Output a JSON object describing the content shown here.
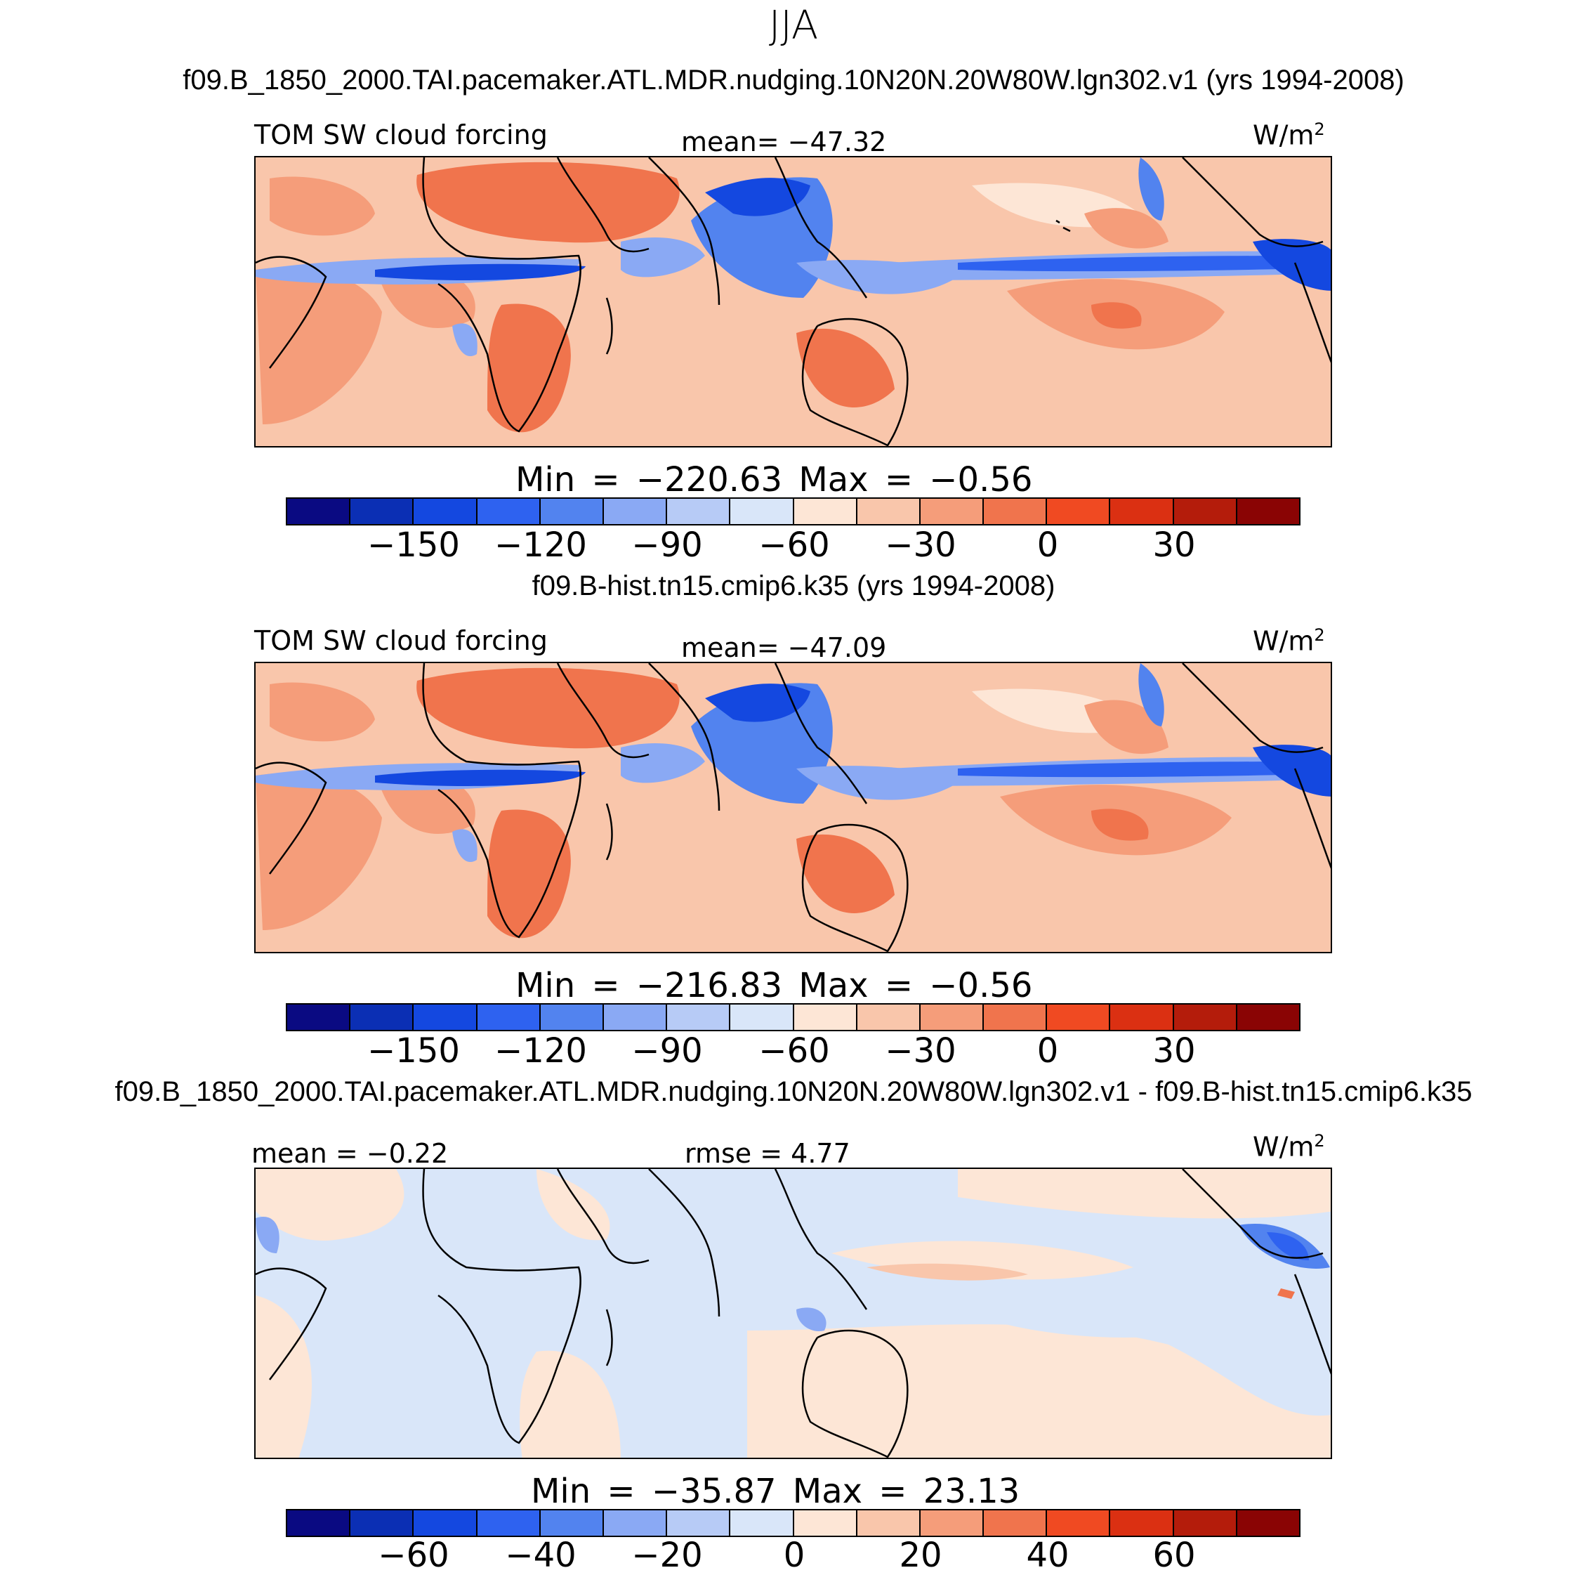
{
  "season": "JJA",
  "colors": [
    "#0a0a82",
    "#0b2fb4",
    "#1448e0",
    "#2e62f0",
    "#5283ef",
    "#8aa9f4",
    "#b7cbf6",
    "#d9e6f9",
    "#fde6d6",
    "#f9c6ab",
    "#f59d7a",
    "#f0744d",
    "#f04a22",
    "#db3012",
    "#b41c0b",
    "#8a0404"
  ],
  "panels": [
    {
      "title": "f09.B_1850_2000.TAI.pacemaker.ATL.MDR.nudging.10N20N.20W80W.lgn302.v1 (yrs 1994-2008)",
      "left_label": "TOM SW cloud forcing",
      "center_label": "mean= −47.32",
      "units": "W/m",
      "units_sup": "2",
      "stats": "Min = −220.63 Max =  −0.56",
      "ticks": [
        "−150",
        "−120",
        "−90",
        "−60",
        "−30",
        "0",
        "30"
      ]
    },
    {
      "title": "f09.B-hist.tn15.cmip6.k35 (yrs 1994-2008)",
      "left_label": "TOM SW cloud forcing",
      "center_label": "mean= −47.09",
      "units": "W/m",
      "units_sup": "2",
      "stats": "Min = −216.83 Max =  −0.56",
      "ticks": [
        "−150",
        "−120",
        "−90",
        "−60",
        "−30",
        "0",
        "30"
      ]
    },
    {
      "title": "f09.B_1850_2000.TAI.pacemaker.ATL.MDR.nudging.10N20N.20W80W.lgn302.v1 - f09.B-hist.tn15.cmip6.k35",
      "left_label": "mean =  −0.22",
      "center_label": "rmse =   4.77",
      "units": "W/m",
      "units_sup": "2",
      "stats": "Min = −35.87 Max =  23.13",
      "ticks": [
        "−60",
        "−40",
        "−20",
        "0",
        "20",
        "40",
        "60"
      ]
    }
  ]
}
